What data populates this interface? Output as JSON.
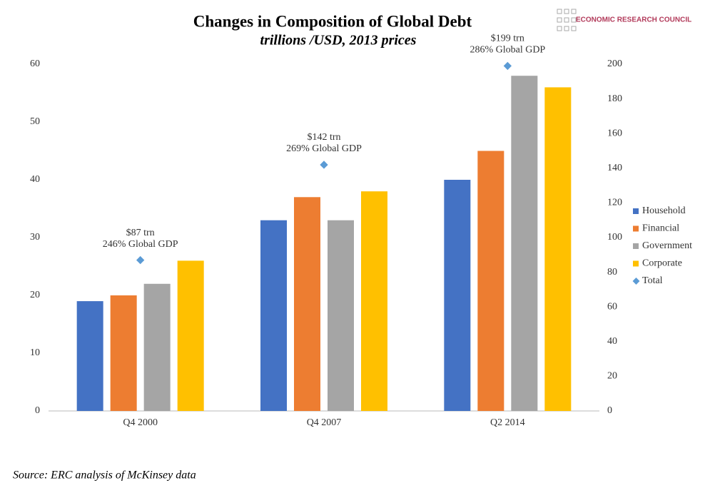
{
  "chart_data": {
    "type": "bar",
    "title": "Changes in Composition of Global Debt",
    "subtitle": "trillions /USD, 2013 prices",
    "source": "Source: ERC analysis of McKinsey data",
    "logo_text": "ECONOMIC RESEARCH COUNCIL",
    "categories": [
      "Q4 2000",
      "Q4 2007",
      "Q2 2014"
    ],
    "series": [
      {
        "name": "Household",
        "color": "#4472c4",
        "values": [
          19,
          33,
          40
        ]
      },
      {
        "name": "Financial",
        "color": "#ed7d31",
        "values": [
          20,
          37,
          45
        ]
      },
      {
        "name": "Government",
        "color": "#a5a5a5",
        "values": [
          22,
          33,
          58
        ]
      },
      {
        "name": "Corporate",
        "color": "#ffc000",
        "values": [
          26,
          38,
          56
        ]
      },
      {
        "name": "Total",
        "color": "#5b9bd5",
        "type": "scatter",
        "axis": "y2",
        "values": [
          87,
          142,
          199
        ],
        "value_labels": [
          "$87 trn",
          "$142 trn",
          "$199 trn"
        ],
        "annotations": [
          "246% Global GDP",
          "269% Global GDP",
          "286% Global GDP"
        ]
      }
    ],
    "ylim": [
      0,
      60
    ],
    "yticks": [
      0,
      10,
      20,
      30,
      40,
      50,
      60
    ],
    "y2lim": [
      0,
      200
    ],
    "y2ticks": [
      0,
      20,
      40,
      60,
      80,
      100,
      120,
      140,
      160,
      180,
      200
    ],
    "legend": "right",
    "grid": false
  }
}
